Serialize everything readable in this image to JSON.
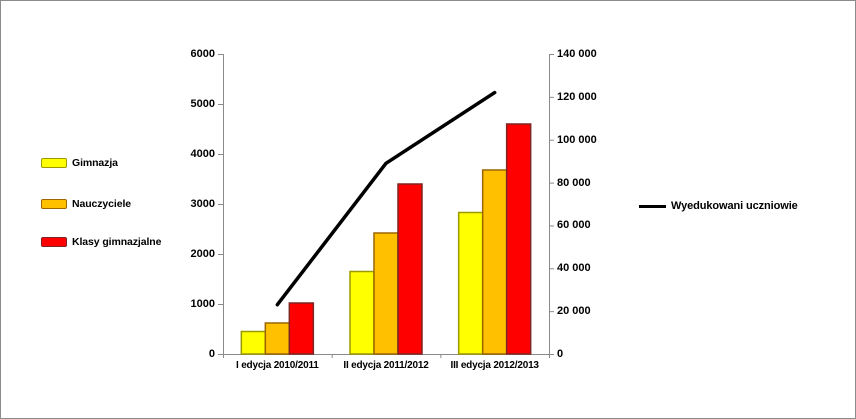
{
  "chart_data": {
    "type": "bar+line combo",
    "categories": [
      "I edycja 2010/2011",
      "II edycja 2011/2012",
      "III edycja 2012/2013"
    ],
    "series": [
      {
        "name": "Gimnazja",
        "type": "bar",
        "axis": "left",
        "color": "#FFFF00",
        "border_color": "#9A9A00",
        "values": [
          450,
          1650,
          2830
        ]
      },
      {
        "name": "Nauczyciele",
        "type": "bar",
        "axis": "left",
        "color": "#FFC000",
        "border_color": "#9C6500",
        "values": [
          620,
          2420,
          3680
        ]
      },
      {
        "name": "Klasy gimnazjalne",
        "type": "bar",
        "axis": "left",
        "color": "#FF0000",
        "border_color": "#7F2423",
        "values": [
          1020,
          3400,
          4600
        ]
      }
    ],
    "line_series": {
      "name": "Wyedukowani uczniowie",
      "type": "line",
      "axis": "right",
      "color": "#000000",
      "values": [
        23000,
        89000,
        122000
      ]
    },
    "left_axis": {
      "min": 0,
      "max": 6000,
      "step": 1000,
      "tick_labels": [
        "0",
        "1000",
        "2000",
        "3000",
        "4000",
        "5000",
        "6000"
      ]
    },
    "right_axis": {
      "min": 0,
      "max": 140000,
      "step": 20000,
      "tick_labels": [
        "0",
        "20 000",
        "40 000",
        "60 000",
        "80 000",
        "100 000",
        "120 000",
        "140 000"
      ]
    },
    "grid": false,
    "legend_bars_position": "left",
    "legend_line_position": "right",
    "axis_color": "#8a8a8a",
    "title": ""
  }
}
